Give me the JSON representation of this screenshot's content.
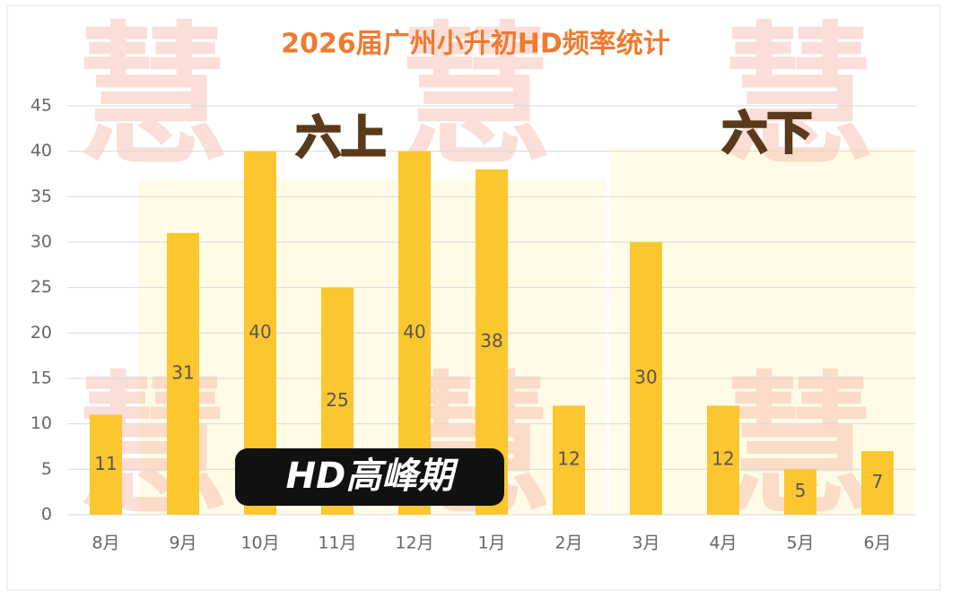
{
  "chart_data": {
    "type": "bar",
    "title": "2026届广州小升初HD频率统计",
    "categories": [
      "8月",
      "9月",
      "10月",
      "11月",
      "12月",
      "1月",
      "2月",
      "3月",
      "4月",
      "5月",
      "6月"
    ],
    "values": [
      11,
      31,
      40,
      25,
      40,
      38,
      12,
      30,
      12,
      5,
      7
    ],
    "color": "#fcc62e",
    "ylim": [
      0,
      45
    ],
    "yticks": [
      0,
      5,
      10,
      15,
      20,
      25,
      30,
      35,
      40,
      45
    ],
    "grid": true,
    "annotations": [
      "六上",
      "六下",
      "HD高峰期"
    ],
    "watermark": "慧"
  }
}
